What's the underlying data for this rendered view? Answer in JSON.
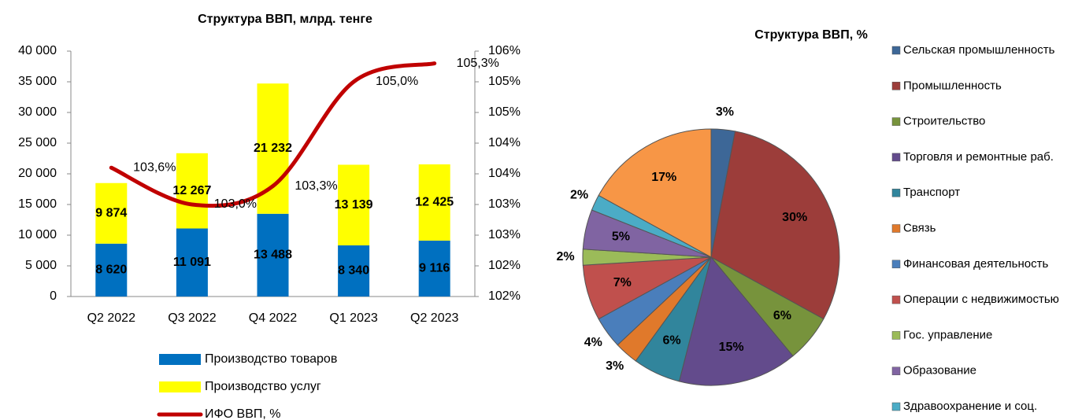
{
  "chart_data": [
    {
      "type": "bar",
      "stacked": true,
      "title": "Структура ВВП, млрд. тенге",
      "categories": [
        "Q2 2022",
        "Q3 2022",
        "Q4 2022",
        "Q1 2023",
        "Q2 2023"
      ],
      "series": [
        {
          "name": "Производство товаров",
          "color": "#0070c0",
          "values": [
            8620,
            11091,
            13488,
            8340,
            9116
          ],
          "value_labels": [
            "8 620",
            "11 091",
            "13 488",
            "8 340",
            "9 116"
          ]
        },
        {
          "name": "Производство услуг",
          "color": "#ffff00",
          "values": [
            9874,
            12267,
            21232,
            13139,
            12425
          ],
          "value_labels": [
            "9 874",
            "12 267",
            "21 232",
            "13 139",
            "12 425"
          ]
        },
        {
          "name": "ИФО ВВП, %",
          "type": "line",
          "axis": "y2",
          "color": "#c00000",
          "values": [
            103.6,
            103.0,
            103.3,
            105.0,
            105.3
          ],
          "value_labels": [
            "103,6%",
            "103,0%",
            "103,3%",
            "105,0%",
            "105,3%"
          ]
        }
      ],
      "ylim": [
        0,
        40000
      ],
      "yticks": [
        0,
        {
          "value": 5000,
          "label": "5 000"
        },
        {
          "value": 10000,
          "label": "10 000"
        },
        {
          "value": 15000,
          "label": "15 000"
        },
        {
          "value": 20000,
          "label": "20 000"
        },
        {
          "value": 25000,
          "label": "25 000"
        },
        {
          "value": 30000,
          "label": "30 000"
        },
        {
          "value": 35000,
          "label": "35 000"
        },
        {
          "value": 40000,
          "label": "40 000"
        }
      ],
      "y2lim": [
        101.5,
        105.5
      ],
      "y2ticks": [
        {
          "value": 101.5,
          "label": "102%"
        },
        {
          "value": 102,
          "label": "102%"
        },
        {
          "value": 102.5,
          "label": "103%"
        },
        {
          "value": 103,
          "label": "103%"
        },
        {
          "value": 103.5,
          "label": "104%"
        },
        {
          "value": 104,
          "label": "104%"
        },
        {
          "value": 104.5,
          "label": "105%"
        },
        {
          "value": 105,
          "label": "105%"
        },
        {
          "value": 105.5,
          "label": "106%"
        }
      ],
      "legend": "bottom"
    },
    {
      "type": "pie",
      "title": "Структура ВВП, %",
      "categories": [
        "Сельская промышленность",
        "Промышленность",
        "Строительство",
        "Торговля и ремонтные раб.",
        "Транспорт",
        "Связь",
        "Финансовая деятельность",
        "Операции с недвижимостью",
        "Гос. управление",
        "Образование",
        "Здравоохранение и соц.",
        null
      ],
      "values": [
        3,
        30,
        6,
        15,
        6,
        3,
        4,
        7,
        2,
        5,
        2,
        17
      ],
      "value_labels": [
        "3%",
        "30%",
        "6%",
        "15%",
        "6%",
        "3%",
        "4%",
        "7%",
        "2%",
        "5%",
        "2%",
        "17%"
      ],
      "colors": [
        "#3d6797",
        "#9c3d3a",
        "#77933c",
        "#634b8c",
        "#31859c",
        "#e0792b",
        "#4a7ebb",
        "#c0504d",
        "#9bbb59",
        "#8064a2",
        "#4bacc6",
        "#f79646"
      ],
      "legend": "right"
    }
  ]
}
